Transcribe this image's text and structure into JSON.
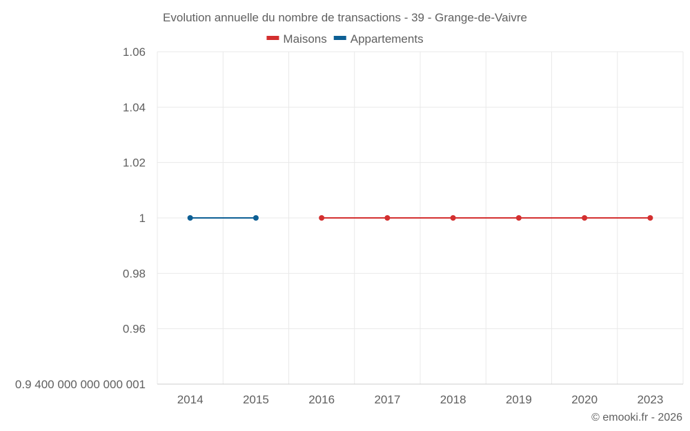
{
  "chart_data": {
    "type": "line",
    "title": "Evolution annuelle du nombre de transactions - 39 - Grange-de-Vaivre",
    "categories": [
      "2014",
      "2015",
      "2016",
      "2017",
      "2018",
      "2019",
      "2020",
      "2023"
    ],
    "series": [
      {
        "name": "Maisons",
        "color": "#d32f2f",
        "values": [
          null,
          null,
          1,
          1,
          1,
          1,
          1,
          1
        ]
      },
      {
        "name": "Appartements",
        "color": "#0d5f94",
        "values": [
          1,
          1,
          null,
          null,
          null,
          null,
          null,
          null
        ]
      }
    ],
    "ylim": [
      0.94,
      1.06
    ],
    "yticks": [
      1.06,
      1.04,
      1.02,
      1,
      0.98,
      0.96,
      0.94
    ],
    "ytick_labels": [
      "1.06",
      "1.04",
      "1.02",
      "1",
      "0.98",
      "0.96",
      "0.9 400 000 000 000 001"
    ],
    "legend_position": "top-center",
    "grid": true,
    "xlabel": "",
    "ylabel": ""
  },
  "credit": "© emooki.fr - 2026"
}
